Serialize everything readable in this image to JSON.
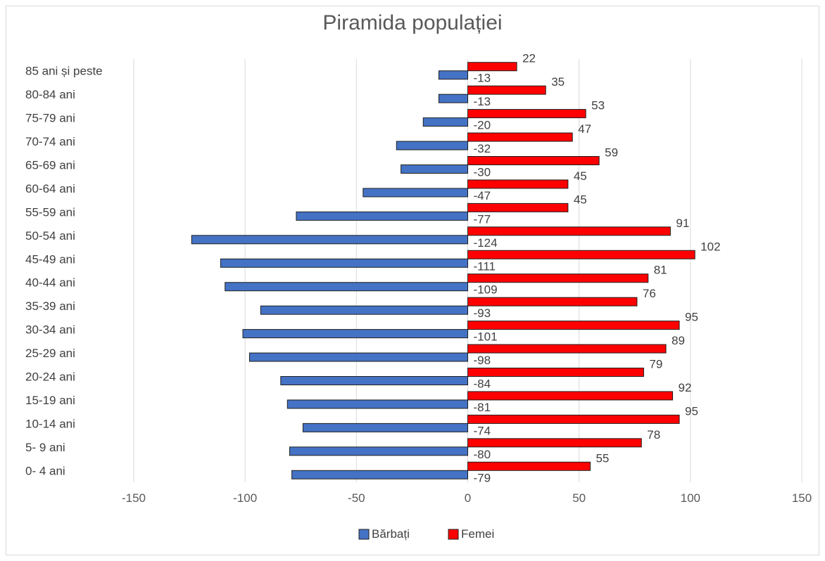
{
  "chart_data": {
    "type": "bar",
    "orientation": "horizontal",
    "title": "Piramida populației",
    "categories": [
      "85 ani și peste",
      "80-84 ani",
      "75-79 ani",
      "70-74 ani",
      "65-69 ani",
      "60-64 ani",
      "55-59 ani",
      "50-54 ani",
      "45-49 ani",
      "40-44 ani",
      "35-39 ani",
      "30-34 ani",
      "25-29 ani",
      "20-24 ani",
      "15-19 ani",
      "10-14 ani",
      "5- 9 ani",
      "0- 4 ani"
    ],
    "series": [
      {
        "name": "Bărbați",
        "color": "#4472c4",
        "values": [
          -13,
          -13,
          -20,
          -32,
          -30,
          -47,
          -77,
          -124,
          -111,
          -109,
          -93,
          -101,
          -98,
          -84,
          -81,
          -74,
          -80,
          -79
        ]
      },
      {
        "name": "Femei",
        "color": "#ff0000",
        "values": [
          22,
          35,
          53,
          47,
          59,
          45,
          45,
          91,
          102,
          81,
          76,
          95,
          89,
          79,
          92,
          95,
          78,
          55
        ]
      }
    ],
    "xlim": [
      -150,
      150
    ],
    "xticks": [
      -150,
      -100,
      -50,
      0,
      50,
      100,
      150
    ],
    "xtick_labels": [
      "-150",
      "-100",
      "-50",
      "0",
      "50",
      "100",
      "150"
    ],
    "grid": "vertical",
    "legend": "bottom"
  }
}
